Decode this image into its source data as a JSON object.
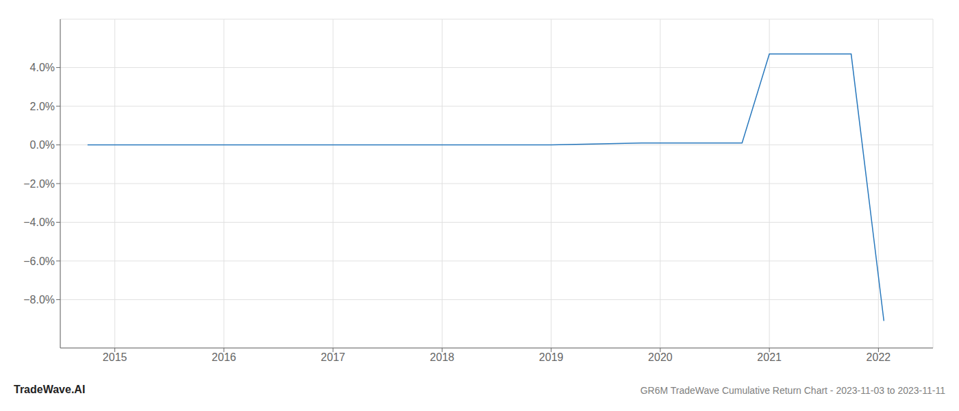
{
  "chart_data": {
    "type": "line",
    "title": "GR6M TradeWave Cumulative Return Chart - 2023-11-03 to 2023-11-11",
    "annotations": [
      "TradeWave.AI"
    ],
    "x": [
      2014.75,
      2015.0,
      2016.0,
      2017.0,
      2018.0,
      2019.0,
      2019.83,
      2020.0,
      2020.75,
      2021.0,
      2021.08,
      2021.75,
      2022.05
    ],
    "values": [
      0.0,
      0.0,
      0.0,
      0.0,
      0.0,
      0.0,
      0.001,
      0.001,
      0.001,
      0.047,
      0.047,
      0.047,
      -0.091
    ],
    "color": "#2878bd",
    "xlim": [
      2014.5,
      2022.5
    ],
    "ylim": [
      -0.105,
      0.065
    ],
    "xticks": [
      2015,
      2016,
      2017,
      2018,
      2019,
      2020,
      2021,
      2022
    ],
    "yticks": [
      {
        "value": -0.08,
        "label": "−8.0%"
      },
      {
        "value": -0.06,
        "label": "−6.0%"
      },
      {
        "value": -0.04,
        "label": "−4.0%"
      },
      {
        "value": -0.02,
        "label": "−2.0%"
      },
      {
        "value": 0.0,
        "label": "0.0%"
      },
      {
        "value": 0.02,
        "label": "2.0%"
      },
      {
        "value": 0.04,
        "label": "4.0%"
      }
    ],
    "grid": true
  }
}
